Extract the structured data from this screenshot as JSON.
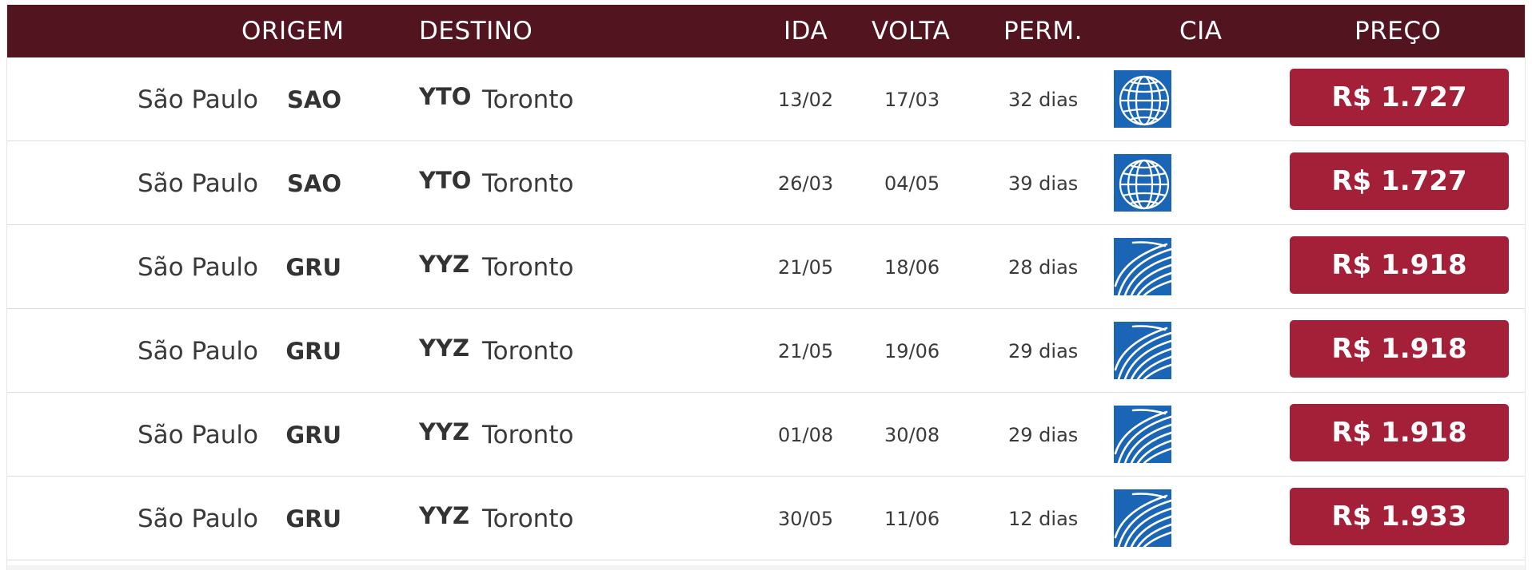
{
  "colors": {
    "header_bg": "#521520",
    "price_button_bg": "#a41f38",
    "logo_blue": "#1a65b5",
    "row_border": "#dedede"
  },
  "header": {
    "origin": "ORIGEM",
    "destination": "DESTINO",
    "depart": "IDA",
    "return": "VOLTA",
    "stay": "PERM.",
    "airline": "CIA",
    "price": "PREÇO"
  },
  "rows": [
    {
      "origin_city": "São Paulo",
      "origin_code": "SAO",
      "dest_code": "YTO",
      "dest_city": "Toronto",
      "depart": "13/02",
      "return": "17/03",
      "stay": "32 dias",
      "airline_icon": "airline-globe-icon",
      "price": "R$ 1.727"
    },
    {
      "origin_city": "São Paulo",
      "origin_code": "SAO",
      "dest_code": "YTO",
      "dest_city": "Toronto",
      "depart": "26/03",
      "return": "04/05",
      "stay": "39 dias",
      "airline_icon": "airline-globe-icon",
      "price": "R$ 1.727"
    },
    {
      "origin_city": "São Paulo",
      "origin_code": "GRU",
      "dest_code": "YYZ",
      "dest_city": "Toronto",
      "depart": "21/05",
      "return": "18/06",
      "stay": "28 dias",
      "airline_icon": "airline-swoosh-icon",
      "price": "R$ 1.918"
    },
    {
      "origin_city": "São Paulo",
      "origin_code": "GRU",
      "dest_code": "YYZ",
      "dest_city": "Toronto",
      "depart": "21/05",
      "return": "19/06",
      "stay": "29 dias",
      "airline_icon": "airline-swoosh-icon",
      "price": "R$ 1.918"
    },
    {
      "origin_city": "São Paulo",
      "origin_code": "GRU",
      "dest_code": "YYZ",
      "dest_city": "Toronto",
      "depart": "01/08",
      "return": "30/08",
      "stay": "29 dias",
      "airline_icon": "airline-swoosh-icon",
      "price": "R$ 1.918"
    },
    {
      "origin_city": "São Paulo",
      "origin_code": "GRU",
      "dest_code": "YYZ",
      "dest_city": "Toronto",
      "depart": "30/05",
      "return": "11/06",
      "stay": "12 dias",
      "airline_icon": "airline-swoosh-icon",
      "price": "R$ 1.933"
    }
  ]
}
